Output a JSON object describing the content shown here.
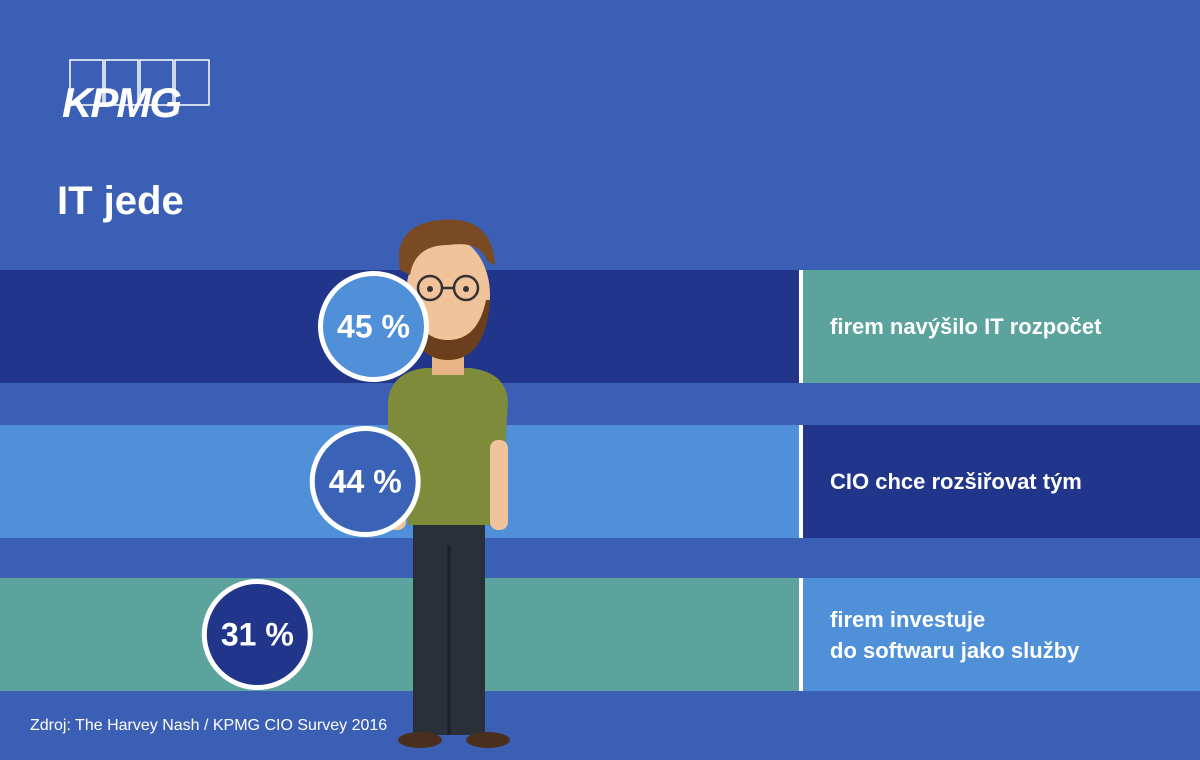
{
  "logo": "KPMG",
  "chart_data": {
    "type": "bar",
    "title": "IT jede",
    "categories": [
      "firem navýšilo IT rozpočet",
      "CIO chce rozšiřovat tým",
      "firem investuje\ndo softwaru jako služby"
    ],
    "values": [
      45,
      44,
      31
    ],
    "value_labels": [
      "45 %",
      "44 %",
      "31 %"
    ],
    "xlim": [
      0,
      100
    ],
    "band_colors": [
      "#21358a",
      "#4f90d8",
      "#5ba39c"
    ],
    "panel_colors": [
      "#5ba39c",
      "#21358a",
      "#4f90d8"
    ],
    "marker_colors": [
      "#4f90d8",
      "#3a63b8",
      "#21358a"
    ],
    "source": "Zdroj: The Harvey Nash / KPMG CIO Survey 2016"
  }
}
